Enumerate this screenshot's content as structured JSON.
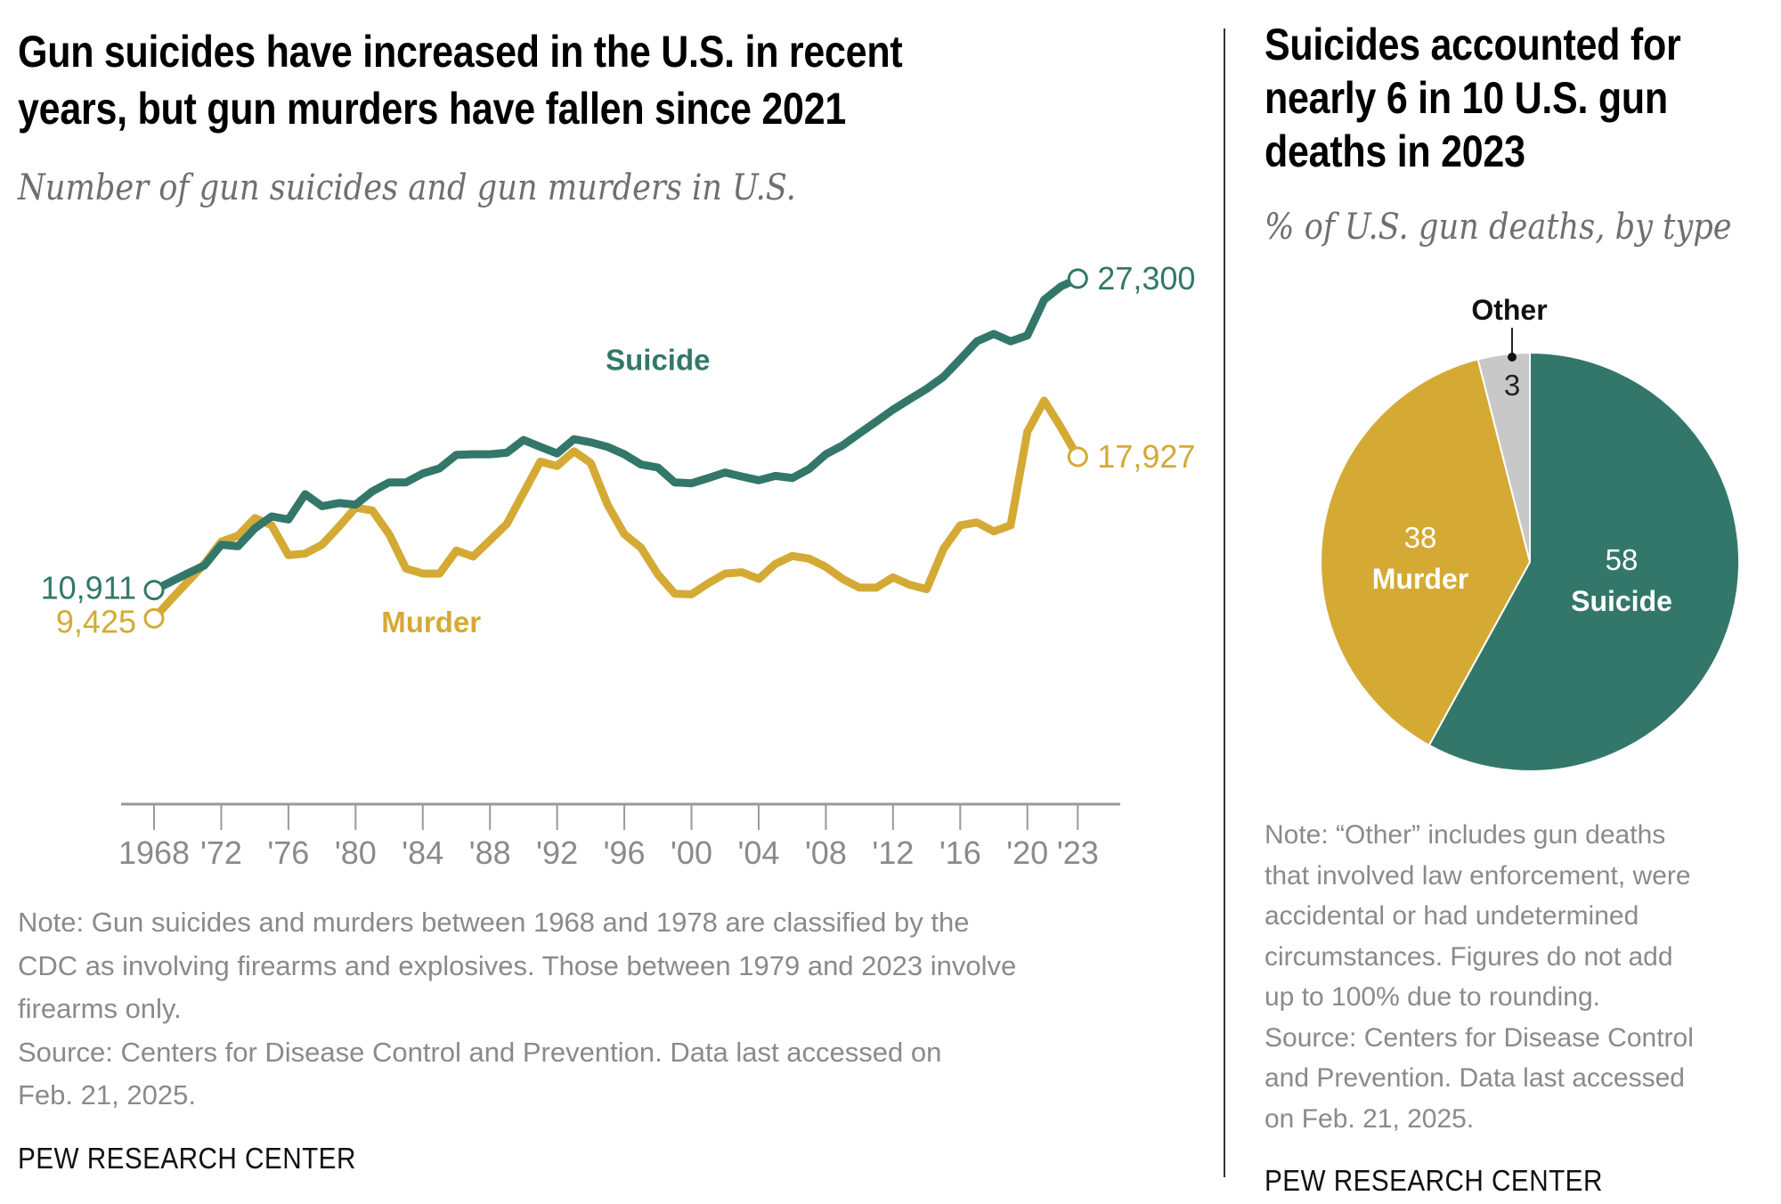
{
  "left_panel": {
    "title_lines": [
      "Gun suicides have increased in the U.S. in recent",
      "years, but gun murders have fallen since 2021"
    ],
    "subtitle": "Number of gun suicides and gun murders in U.S.",
    "note_lines": [
      "Note: Gun suicides and murders between 1968 and 1978 are classified by the",
      "CDC as involving firearms and explosives. Those between 1979 and 2023 involve",
      "firearms only.",
      "Source: Centers for Disease Control and Prevention. Data last accessed on",
      "Feb. 21, 2025."
    ],
    "brand": "PEW RESEARCH CENTER"
  },
  "right_panel": {
    "title_lines": [
      "Suicides accounted for",
      "nearly 6 in 10 U.S. gun",
      "deaths in 2023"
    ],
    "subtitle": "% of U.S. gun deaths, by type",
    "note_lines": [
      "Note: “Other” includes gun deaths",
      "that involved law enforcement, were",
      "accidental or had undetermined",
      "circumstances. Figures do not add",
      "up to 100% due to rounding.",
      "Source: Centers for Disease Control",
      "and Prevention. Data last accessed",
      "on Feb. 21, 2025."
    ],
    "brand": "PEW RESEARCH CENTER"
  },
  "colors": {
    "suicide": "#33776a",
    "murder": "#d4aa35",
    "other": "#c8c8c8",
    "axis": "#9a9a9a"
  },
  "chart_data": [
    {
      "type": "line",
      "title": "Gun suicides have increased in the U.S. in recent years, but gun murders have fallen since 2021",
      "subtitle": "Number of gun suicides and gun murders in U.S.",
      "xlabel": "",
      "ylabel": "",
      "ylim": [
        0,
        42000
      ],
      "xlim": [
        1968,
        2023
      ],
      "grid": false,
      "x": [
        1968,
        1969,
        1970,
        1971,
        1972,
        1973,
        1974,
        1975,
        1976,
        1977,
        1978,
        1979,
        1980,
        1981,
        1982,
        1983,
        1984,
        1985,
        1986,
        1987,
        1988,
        1989,
        1990,
        1991,
        1992,
        1993,
        1994,
        1995,
        1996,
        1997,
        1998,
        1999,
        2000,
        2001,
        2002,
        2003,
        2004,
        2005,
        2006,
        2007,
        2008,
        2009,
        2010,
        2011,
        2012,
        2013,
        2014,
        2015,
        2016,
        2017,
        2018,
        2019,
        2020,
        2021,
        2022,
        2023
      ],
      "tick_values": [
        1968,
        1972,
        1976,
        1980,
        1984,
        1988,
        1992,
        1996,
        2000,
        2004,
        2008,
        2012,
        2016,
        2020,
        2023
      ],
      "tick_labels": [
        "1968",
        "'72",
        "'76",
        "'80",
        "'84",
        "'88",
        "'92",
        "'96",
        "'00",
        "'04",
        "'08",
        "'12",
        "'16",
        "'20",
        "'23"
      ],
      "series": [
        {
          "name": "Suicide",
          "label_anchor_year": 1998,
          "label_anchor_value": 22500,
          "start_label": "10,911",
          "end_label": "27,300",
          "values": [
            10911,
            11350,
            11790,
            12210,
            13300,
            13220,
            14160,
            14790,
            14630,
            15960,
            15330,
            15490,
            15410,
            16110,
            16580,
            16580,
            17050,
            17320,
            18030,
            18060,
            18060,
            18140,
            18810,
            18450,
            18100,
            18850,
            18690,
            18450,
            18060,
            17520,
            17360,
            16580,
            16530,
            16810,
            17100,
            16890,
            16690,
            16920,
            16810,
            17280,
            18060,
            18530,
            19160,
            19780,
            20410,
            20960,
            21500,
            22130,
            23060,
            24000,
            24390,
            24000,
            24310,
            26190,
            26890,
            27300
          ]
        },
        {
          "name": "Murder",
          "label_anchor_year": 1984.5,
          "label_anchor_value": 8700,
          "start_label": "9,425",
          "end_label": "17,927",
          "values": [
            9425,
            10410,
            11350,
            12290,
            13460,
            13770,
            14700,
            14320,
            12750,
            12830,
            13300,
            14240,
            15250,
            15100,
            13850,
            12050,
            11780,
            11780,
            12990,
            12680,
            13530,
            14390,
            16030,
            17670,
            17440,
            18220,
            17600,
            15410,
            13850,
            13140,
            11740,
            10720,
            10690,
            11270,
            11780,
            11850,
            11500,
            12290,
            12710,
            12570,
            12130,
            11500,
            11040,
            11040,
            11580,
            11190,
            10960,
            13070,
            14320,
            14470,
            14000,
            14320,
            19240,
            20880,
            19470,
            17927
          ]
        }
      ]
    },
    {
      "type": "pie",
      "title": "Suicides accounted for nearly 6 in 10 U.S. gun deaths in 2023",
      "subtitle": "% of U.S. gun deaths, by type",
      "categories": [
        "Suicide",
        "Murder",
        "Other"
      ],
      "values": [
        58,
        38,
        3
      ],
      "labels": [
        "58",
        "38",
        "3"
      ]
    }
  ]
}
